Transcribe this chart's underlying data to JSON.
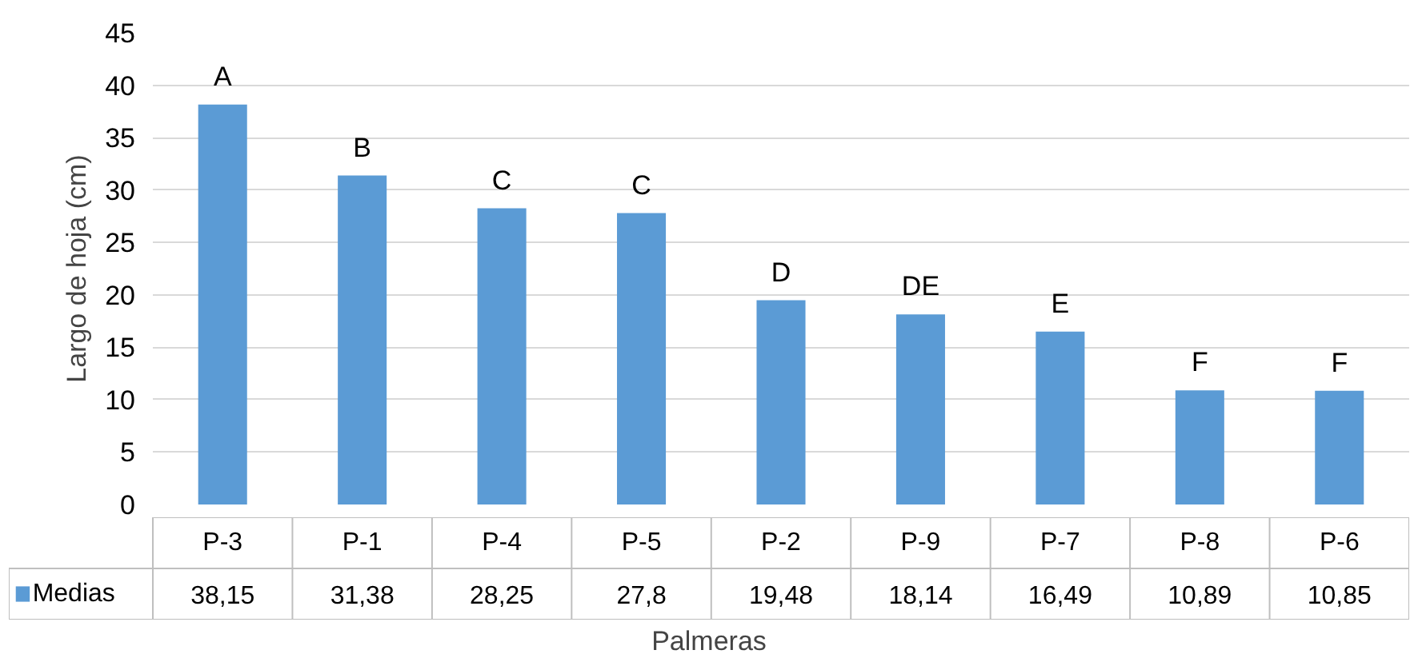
{
  "chart_data": {
    "type": "bar",
    "xlabel": "Palmeras",
    "ylabel": "Largo de hoja (cm)",
    "categories": [
      "P-3",
      "P-1",
      "P-4",
      "P-5",
      "P-2",
      "P-9",
      "P-7",
      "P-8",
      "P-6"
    ],
    "series": [
      {
        "name": "Medias",
        "color": "#5b9bd5",
        "values": [
          38.15,
          31.38,
          28.25,
          27.8,
          19.48,
          18.14,
          16.49,
          10.89,
          10.85
        ],
        "value_labels": [
          "38,15",
          "31,38",
          "28,25",
          "27,8",
          "19,48",
          "18,14",
          "16,49",
          "10,89",
          "10,85"
        ]
      }
    ],
    "ylim": [
      0,
      45
    ],
    "yticks": [
      0,
      5,
      10,
      15,
      20,
      25,
      30,
      35,
      40,
      45
    ],
    "grid": "y",
    "legend": "bottom",
    "annotations": [
      "A",
      "B",
      "C",
      "C",
      "D",
      "DE",
      "E",
      "F",
      "F"
    ]
  }
}
